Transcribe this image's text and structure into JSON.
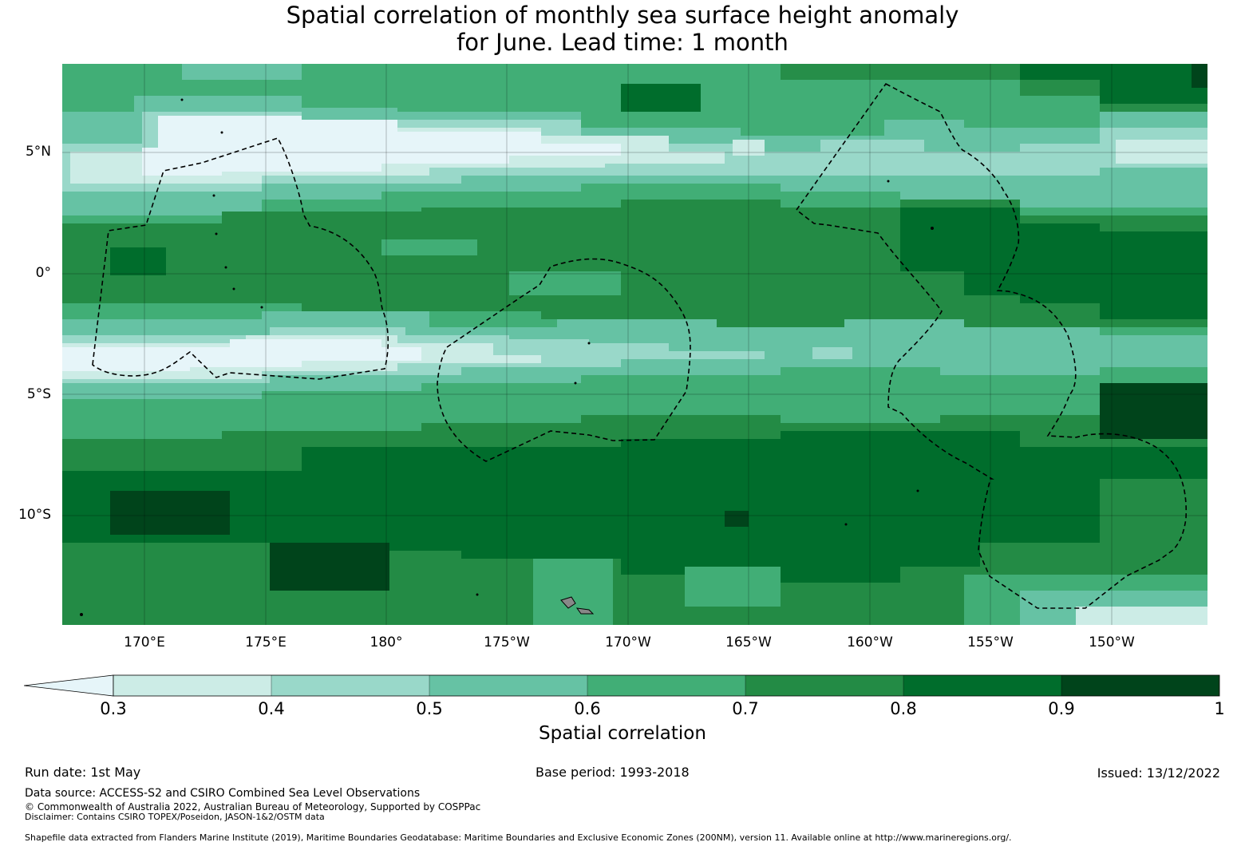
{
  "title_line1": "Spatial correlation of monthly sea surface height anomaly",
  "title_line2": "for June. Lead time: 1 month",
  "map": {
    "lat_labels": [
      "5°N",
      "0°",
      "5°S",
      "10°S"
    ],
    "lon_labels": [
      "170°E",
      "175°E",
      "180°",
      "175°W",
      "170°W",
      "165°W",
      "160°W",
      "155°W",
      "150°W"
    ],
    "eez_boundary_style": "dashed black",
    "colors": {
      "lt_0_3": "#e6f5f9",
      "c0_3_0_4": "#ccece6",
      "c0_4_0_5": "#99d8c9",
      "c0_5_0_6": "#66c2a4",
      "c0_6_0_7": "#41ae76",
      "c0_7_0_8": "#238b45",
      "c0_8_0_9": "#006d2c",
      "c0_9_1": "#00441b"
    }
  },
  "colorbar": {
    "ticks": [
      "0.3",
      "0.4",
      "0.5",
      "0.6",
      "0.7",
      "0.8",
      "0.9",
      "1"
    ],
    "label": "Spatial correlation",
    "extend": "min"
  },
  "footer": {
    "run_date": "Run date: 1st May",
    "base_period": "Base period: 1993-2018",
    "issued": "Issued: 13/12/2022",
    "data_source": "Data source: ACCESS-S2 and CSIRO Combined Sea Level Observations",
    "copyright": "© Commonwealth of Australia 2022, Australian Bureau of Meteorology, Supported by COSPPac",
    "disclaimer": "Disclaimer: Contains CSIRO TOPEX/Poseidon, JASON-1&2/OSTM data",
    "shapefile": "Shapefile data extracted from Flanders Marine Institute (2019), Maritime Boundaries Geodatabase: Maritime Boundaries and Exclusive Economic Zones (200NM), version 11. Available online at http://www.marineregions.org/."
  }
}
